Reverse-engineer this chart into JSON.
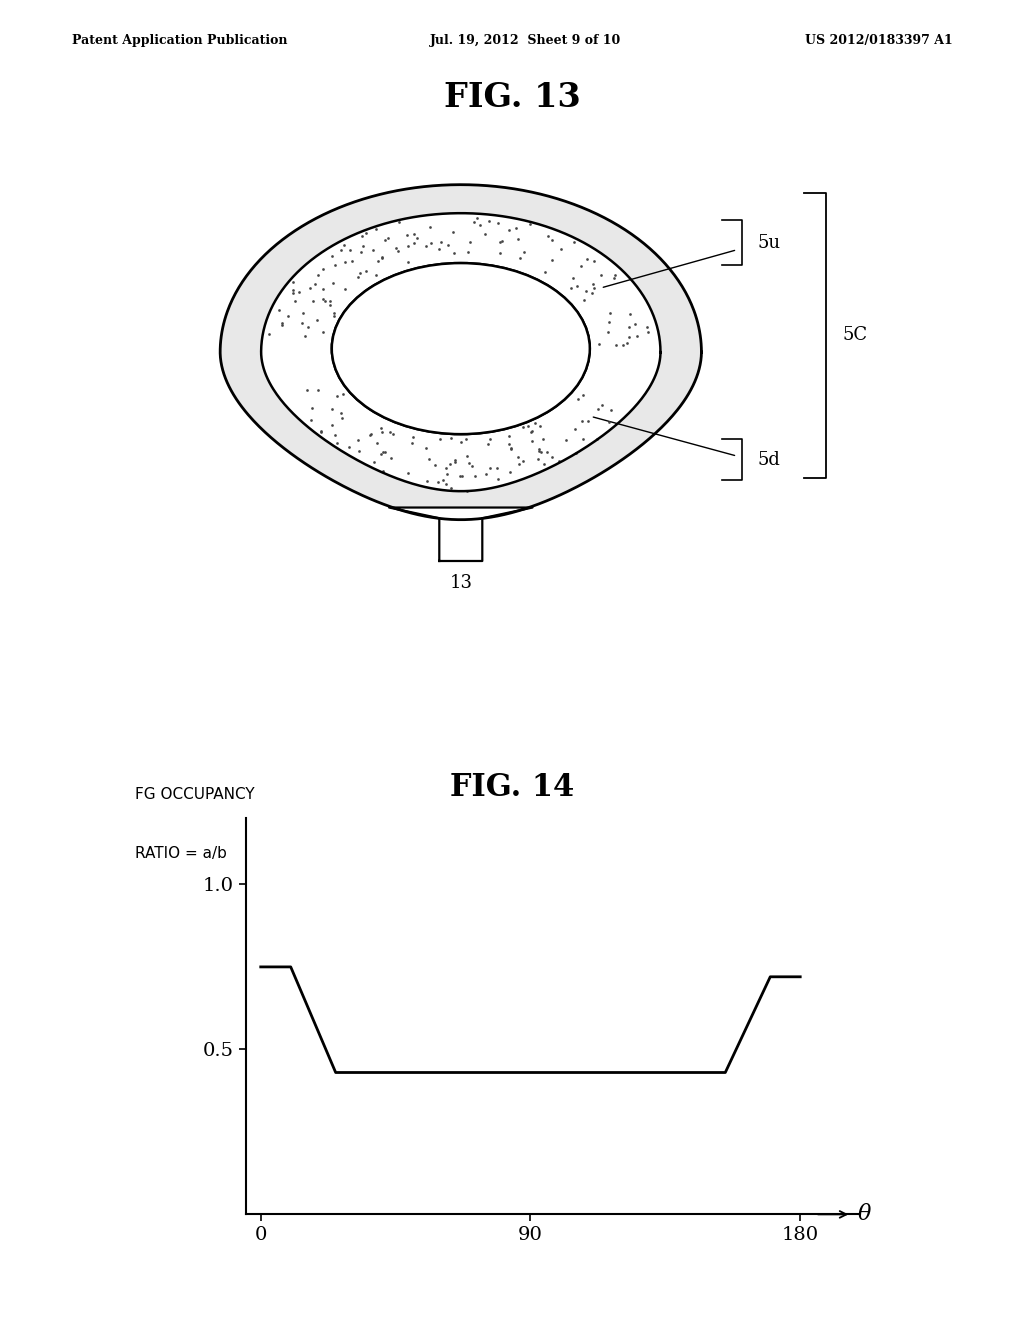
{
  "bg_color": "#ffffff",
  "header_left": "Patent Application Publication",
  "header_center": "Jul. 19, 2012  Sheet 9 of 10",
  "header_right": "US 2012/0183397 A1",
  "fig13_title": "FIG. 13",
  "fig14_title": "FIG. 14",
  "label_5u": "5u",
  "label_5C": "5C",
  "label_5d": "5d",
  "label_13": "13",
  "ylabel_line1": "FG OCCUPANCY",
  "ylabel_line2": "RATIO = a/b",
  "ytick_1": "1.0",
  "ytick_05": "0.5",
  "xtick_0": "0",
  "xtick_90": "90",
  "xtick_180": "180",
  "xlabel": "θ",
  "curve_x": [
    0,
    10,
    25,
    90,
    155,
    170,
    180
  ],
  "curve_y": [
    0.75,
    0.75,
    0.43,
    0.43,
    0.43,
    0.72,
    0.72
  ],
  "ylim": [
    0,
    1.2
  ],
  "xlim": [
    -5,
    200
  ]
}
